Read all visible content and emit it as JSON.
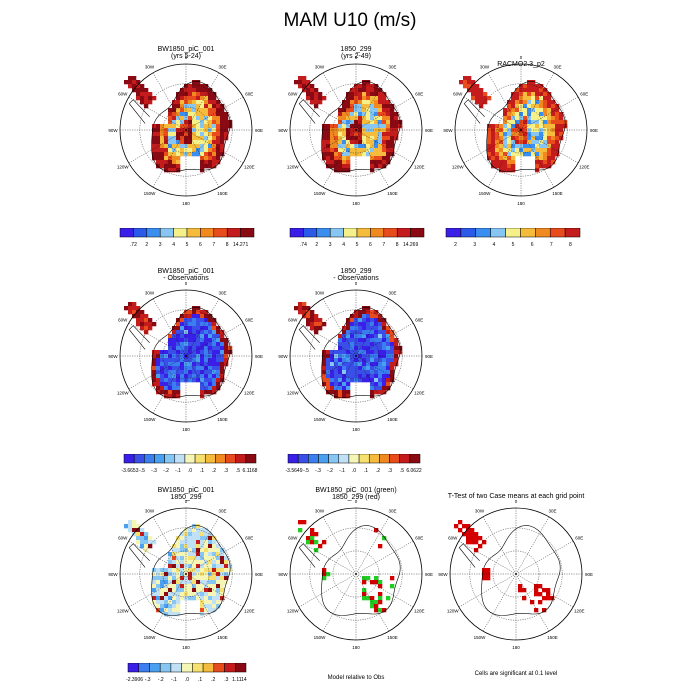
{
  "figure": {
    "title": "MAM U10 (m/s)"
  },
  "panels": [
    {
      "id": "p1",
      "title_lines": [
        "BW1850_piC_001",
        "(yrs 5-24)"
      ],
      "kind": "field",
      "palette": "abs"
    },
    {
      "id": "p2",
      "title_lines": [
        "1850_299",
        "(yrs 2-49)"
      ],
      "kind": "field",
      "palette": "abs"
    },
    {
      "id": "p3",
      "title_lines": [
        "RACMO2.3_p2"
      ],
      "kind": "field",
      "palette": "abs"
    },
    {
      "id": "p4",
      "title_lines": [
        "BW1850_piC_001",
        "- Observations"
      ],
      "kind": "field",
      "palette": "diff"
    },
    {
      "id": "p5",
      "title_lines": [
        "1850_299",
        "- Observations"
      ],
      "kind": "field",
      "palette": "diff"
    },
    {
      "id": "p6",
      "title_lines": [
        "BW1850_piC_001",
        "1850_299"
      ],
      "kind": "field",
      "palette": "diff"
    },
    {
      "id": "p7",
      "title_lines": [
        "BW1850_piC_001 (green)",
        "1850_299 (red)"
      ],
      "kind": "sig",
      "note": "Model relative to Obs"
    },
    {
      "id": "p8",
      "title_lines": [
        "T-Test of two Case means at each grid point"
      ],
      "kind": "ttest",
      "note": "Cells are significant at 0.1 level"
    }
  ],
  "map_labels": {
    "lon": [
      "0",
      "30E",
      "60E",
      "90E",
      "120E",
      "150E",
      "180",
      "150W",
      "120W",
      "90W",
      "60W",
      "30W"
    ]
  },
  "colorbars": [
    {
      "panel": "p1",
      "colors": [
        "#3a1fe8",
        "#2b5ae8",
        "#3a8ef0",
        "#87c5f2",
        "#f5f08a",
        "#f5bb3c",
        "#f08a20",
        "#e84b1c",
        "#c41c1c",
        "#8a0a14"
      ],
      "labels": [
        ".72",
        "2",
        "3",
        "4",
        "5",
        "6",
        "7",
        "8",
        "14.271"
      ]
    },
    {
      "panel": "p2",
      "colors": [
        "#3a1fe8",
        "#2b5ae8",
        "#3a8ef0",
        "#87c5f2",
        "#f5f08a",
        "#f5bb3c",
        "#f08a20",
        "#e84b1c",
        "#c41c1c",
        "#8a0a14"
      ],
      "labels": [
        ".74",
        "2",
        "3",
        "4",
        "5",
        "6",
        "7",
        "8",
        "14.269"
      ]
    },
    {
      "panel": "p3",
      "colors": [
        "#3a1fe8",
        "#2b5ae8",
        "#3a8ef0",
        "#87c5f2",
        "#f5f08a",
        "#f5bb3c",
        "#f08a20",
        "#e84b1c",
        "#c41c1c"
      ],
      "labels": [
        "2",
        "3",
        "4",
        "5",
        "6",
        "7",
        "8"
      ]
    },
    {
      "panel": "p4",
      "colors": [
        "#3a1fe8",
        "#3a4ee8",
        "#3a7ef0",
        "#4aa0f0",
        "#87c5f2",
        "#bfe0f5",
        "#f5f5b5",
        "#f5e070",
        "#f5bb3c",
        "#f08a20",
        "#e84b1c",
        "#c41c1c",
        "#8a0a14"
      ],
      "labels": [
        "-3.6653",
        "-.5",
        "-.3",
        "-.2",
        "-.1",
        ".0",
        ".1",
        ".2",
        ".3",
        ".5",
        "6.1168"
      ]
    },
    {
      "panel": "p5",
      "colors": [
        "#3a1fe8",
        "#3a4ee8",
        "#3a7ef0",
        "#4aa0f0",
        "#87c5f2",
        "#bfe0f5",
        "#f5f5b5",
        "#f5e070",
        "#f5bb3c",
        "#f08a20",
        "#e84b1c",
        "#c41c1c",
        "#8a0a14"
      ],
      "labels": [
        "-3.5649",
        "-.5",
        "-.3",
        "-.2",
        "-.1",
        ".0",
        ".1",
        ".2",
        ".3",
        ".5",
        "6.0622"
      ]
    },
    {
      "panel": "p6",
      "colors": [
        "#3a1fe8",
        "#3a7ef0",
        "#4aa0f0",
        "#87c5f2",
        "#bfe0f5",
        "#f5f5b5",
        "#f5e070",
        "#f5bb3c",
        "#e84b1c",
        "#c41c1c",
        "#8a0a14"
      ],
      "labels": [
        "-2.3906",
        "-.3",
        "-.2",
        "-.1",
        ".0",
        ".1",
        ".2",
        ".3",
        "1.1114"
      ]
    }
  ]
}
